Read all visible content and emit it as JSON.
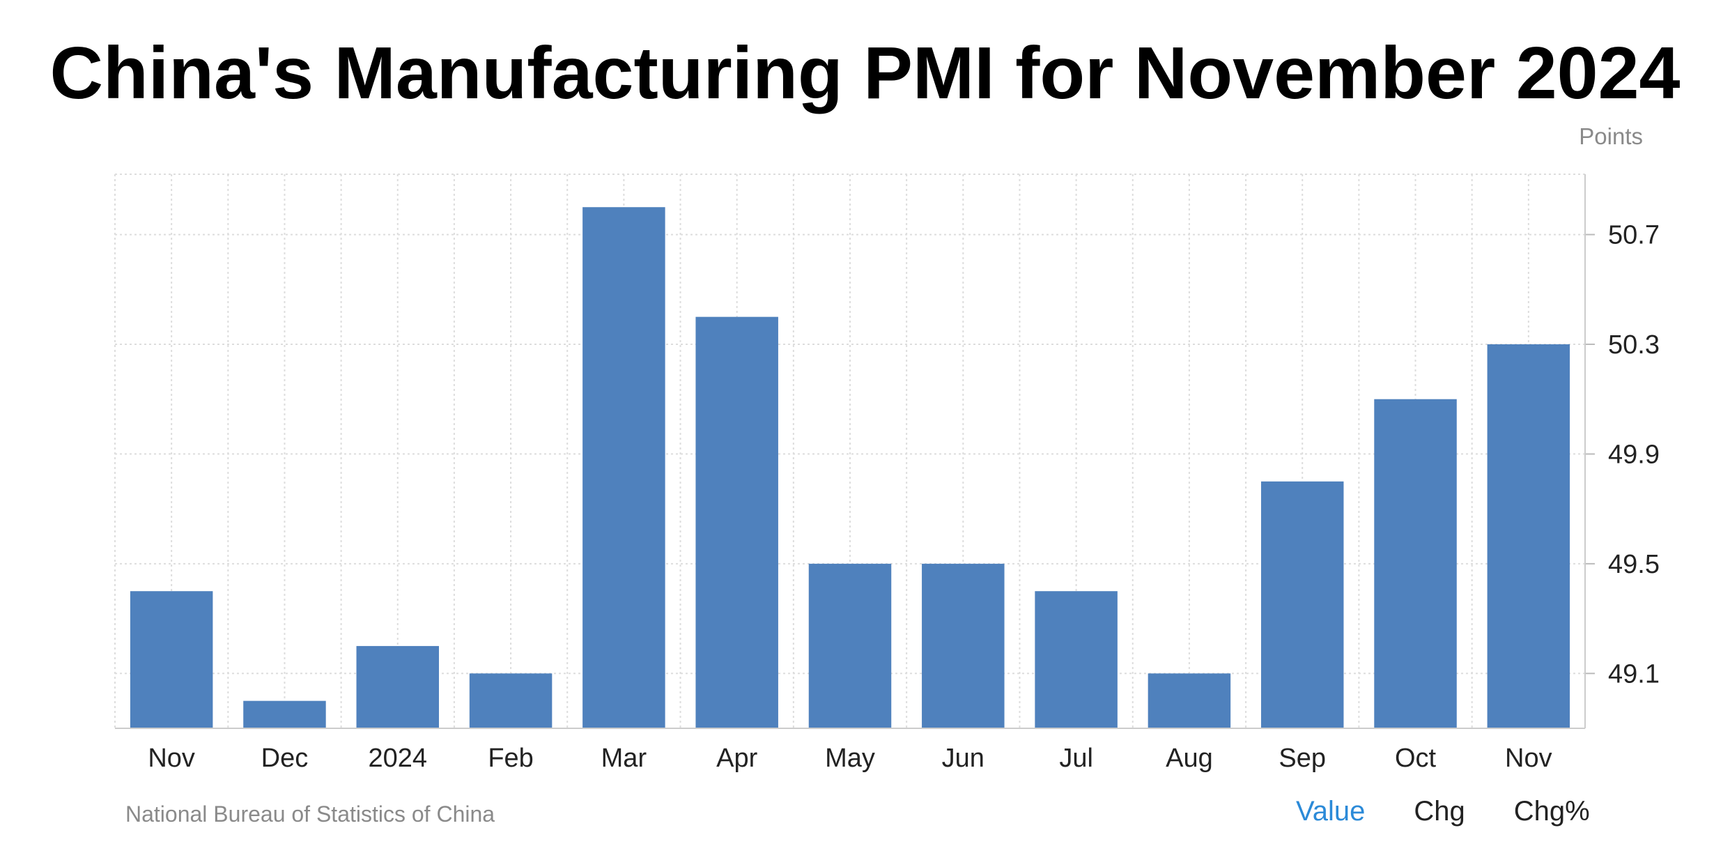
{
  "header": {
    "title": "China's Manufacturing PMI for November 2024"
  },
  "footer": {
    "source": "National Bureau of Statistics of China",
    "tabs": [
      {
        "label": "Value",
        "active": true
      },
      {
        "label": "Chg",
        "active": false
      },
      {
        "label": "Chg%",
        "active": false
      }
    ]
  },
  "colors": {
    "bar": "#4f81bd",
    "active_tab": "#2b8ad8",
    "grid": "#dddddd"
  },
  "chart_data": {
    "type": "bar",
    "title": "China's Manufacturing PMI for November 2024",
    "unit_label": "Points",
    "categories": [
      "Nov",
      "Dec",
      "2024",
      "Feb",
      "Mar",
      "Apr",
      "May",
      "Jun",
      "Jul",
      "Aug",
      "Sep",
      "Oct",
      "Nov"
    ],
    "values": [
      49.4,
      49.0,
      49.2,
      49.1,
      50.8,
      50.4,
      49.5,
      49.5,
      49.4,
      49.1,
      49.8,
      50.1,
      50.3
    ],
    "yticks": [
      "49.1",
      "49.5",
      "49.9",
      "50.3",
      "50.7"
    ],
    "ylim": [
      48.9,
      50.92
    ],
    "y_axis_position": "right",
    "grid": true,
    "legend": "none"
  }
}
